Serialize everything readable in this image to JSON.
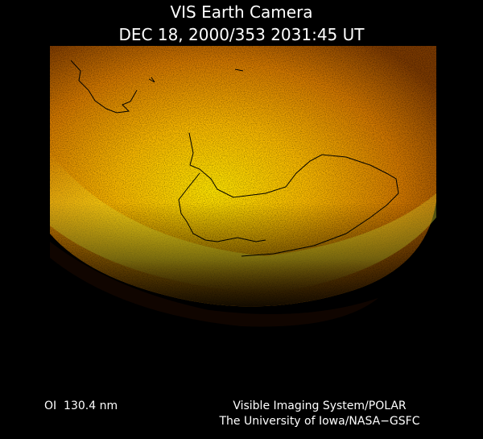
{
  "header": {
    "title": "VIS Earth Camera",
    "timestamp": "DEC 18, 2000/353 2031:45 UT"
  },
  "footer": {
    "wavelength": "OI  130.4 nm",
    "instrument": "Visible Imaging System/POLAR",
    "institution": "The University of Iowa/NASA−GSFC"
  }
}
